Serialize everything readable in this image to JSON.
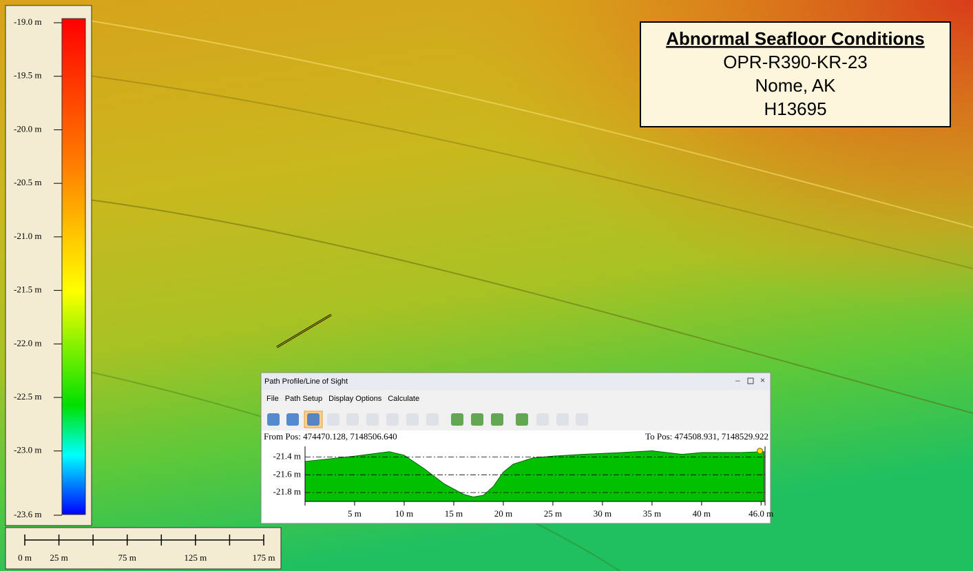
{
  "legend": {
    "items": [
      {
        "value": -19.0,
        "label": "-19.0 m"
      },
      {
        "value": -19.5,
        "label": "-19.5 m"
      },
      {
        "value": -20.0,
        "label": "-20.0 m"
      },
      {
        "value": -20.5,
        "label": "-20.5 m"
      },
      {
        "value": -21.0,
        "label": "-21.0 m"
      },
      {
        "value": -21.5,
        "label": "-21.5 m"
      },
      {
        "value": -22.0,
        "label": "-22.0 m"
      },
      {
        "value": -22.5,
        "label": "-22.5 m"
      },
      {
        "value": -23.0,
        "label": "-23.0 m"
      },
      {
        "value": -23.6,
        "label": "-23.6 m"
      }
    ]
  },
  "scale_bar": {
    "tick_values": [
      0,
      25,
      50,
      75,
      100,
      125,
      150,
      175
    ],
    "labels": [
      {
        "value": 0,
        "label": "0 m"
      },
      {
        "value": 25,
        "label": "25 m"
      },
      {
        "value": 75,
        "label": "75 m"
      },
      {
        "value": 125,
        "label": "125 m"
      },
      {
        "value": 175,
        "label": "175 m"
      }
    ]
  },
  "title_box": {
    "title": "Abnormal Seafloor Conditions",
    "lines": [
      "OPR-R390-KR-23",
      "Nome, AK",
      "H13695"
    ]
  },
  "profile_window": {
    "title": "Path Profile/Line of Sight",
    "menu": [
      "File",
      "Path Setup",
      "Display Options",
      "Calculate"
    ],
    "from_pos": "From Pos: 474470.128, 7148506.640",
    "to_pos": "To Pos: 474508.931, 7148529.922",
    "chart_data": {
      "type": "area",
      "color": "#00c000",
      "x": [
        0,
        5,
        8.5,
        10,
        12,
        14,
        16,
        17,
        18,
        19,
        20,
        21,
        23,
        25,
        28,
        32,
        35,
        38,
        40,
        44,
        46.3
      ],
      "values": [
        -21.45,
        -21.39,
        -21.34,
        -21.38,
        -21.53,
        -21.7,
        -21.82,
        -21.85,
        -21.83,
        -21.73,
        -21.57,
        -21.48,
        -21.41,
        -21.39,
        -21.37,
        -21.35,
        -21.33,
        -21.37,
        -21.35,
        -21.35,
        -21.34
      ],
      "xlim": [
        0,
        46.4
      ],
      "ylim": [
        -21.9,
        -21.28
      ],
      "xticks": [
        {
          "value": 5,
          "label": "5 m"
        },
        {
          "value": 10,
          "label": "10 m"
        },
        {
          "value": 15,
          "label": "15 m"
        },
        {
          "value": 20,
          "label": "20 m"
        },
        {
          "value": 25,
          "label": "25 m"
        },
        {
          "value": 30,
          "label": "30 m"
        },
        {
          "value": 35,
          "label": "35 m"
        },
        {
          "value": 40,
          "label": "40 m"
        },
        {
          "value": 46.0,
          "label": "46.0 m"
        }
      ],
      "yticks": [
        {
          "value": -21.4,
          "label": "-21.4 m"
        },
        {
          "value": -21.6,
          "label": "-21.6 m"
        },
        {
          "value": -21.8,
          "label": "-21.8 m"
        }
      ],
      "grid": true
    }
  }
}
